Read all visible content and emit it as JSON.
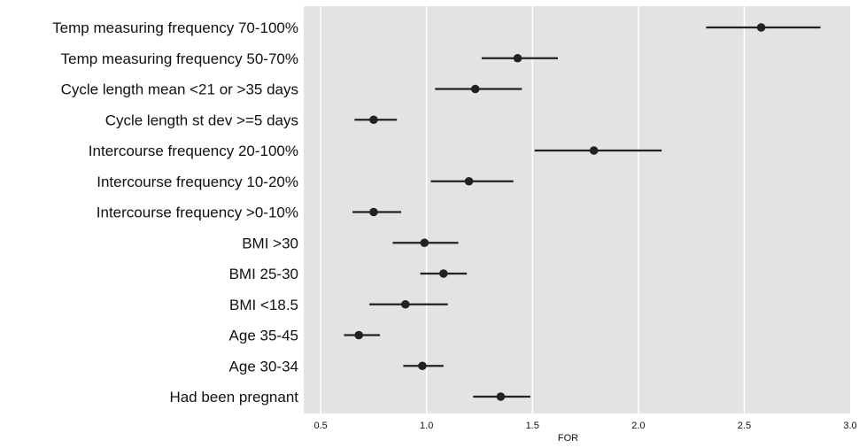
{
  "chart_data": {
    "type": "scatter",
    "subtype": "forest-plot",
    "title": "",
    "xlabel": "FOR",
    "ylabel": "",
    "xlim": [
      0.42,
      3.0
    ],
    "xticks": [
      "0.5",
      "1.0",
      "1.5",
      "2.0",
      "2.5",
      "3.0"
    ],
    "grid": "vertical",
    "colors": {
      "panel": "#e3e3e3",
      "grid": "#ffffff",
      "marker": "#222222"
    },
    "rows": [
      {
        "label": "Temp measuring frequency 70-100%",
        "estimate": 2.58,
        "low": 2.32,
        "high": 2.86
      },
      {
        "label": "Temp measuring frequency 50-70%",
        "estimate": 1.43,
        "low": 1.26,
        "high": 1.62
      },
      {
        "label": "Cycle length mean <21 or >35 days",
        "estimate": 1.23,
        "low": 1.04,
        "high": 1.45
      },
      {
        "label": "Cycle length st dev >=5 days",
        "estimate": 0.75,
        "low": 0.66,
        "high": 0.86
      },
      {
        "label": "Intercourse frequency 20-100%",
        "estimate": 1.79,
        "low": 1.51,
        "high": 2.11
      },
      {
        "label": "Intercourse frequency 10-20%",
        "estimate": 1.2,
        "low": 1.02,
        "high": 1.41
      },
      {
        "label": "Intercourse frequency >0-10%",
        "estimate": 0.75,
        "low": 0.65,
        "high": 0.88
      },
      {
        "label": "BMI >30",
        "estimate": 0.99,
        "low": 0.84,
        "high": 1.15
      },
      {
        "label": "BMI 25-30",
        "estimate": 1.08,
        "low": 0.97,
        "high": 1.19
      },
      {
        "label": "BMI <18.5",
        "estimate": 0.9,
        "low": 0.73,
        "high": 1.1
      },
      {
        "label": "Age 35-45",
        "estimate": 0.68,
        "low": 0.61,
        "high": 0.78
      },
      {
        "label": "Age 30-34",
        "estimate": 0.98,
        "low": 0.89,
        "high": 1.08
      },
      {
        "label": "Had been pregnant",
        "estimate": 1.35,
        "low": 1.22,
        "high": 1.49
      }
    ]
  }
}
